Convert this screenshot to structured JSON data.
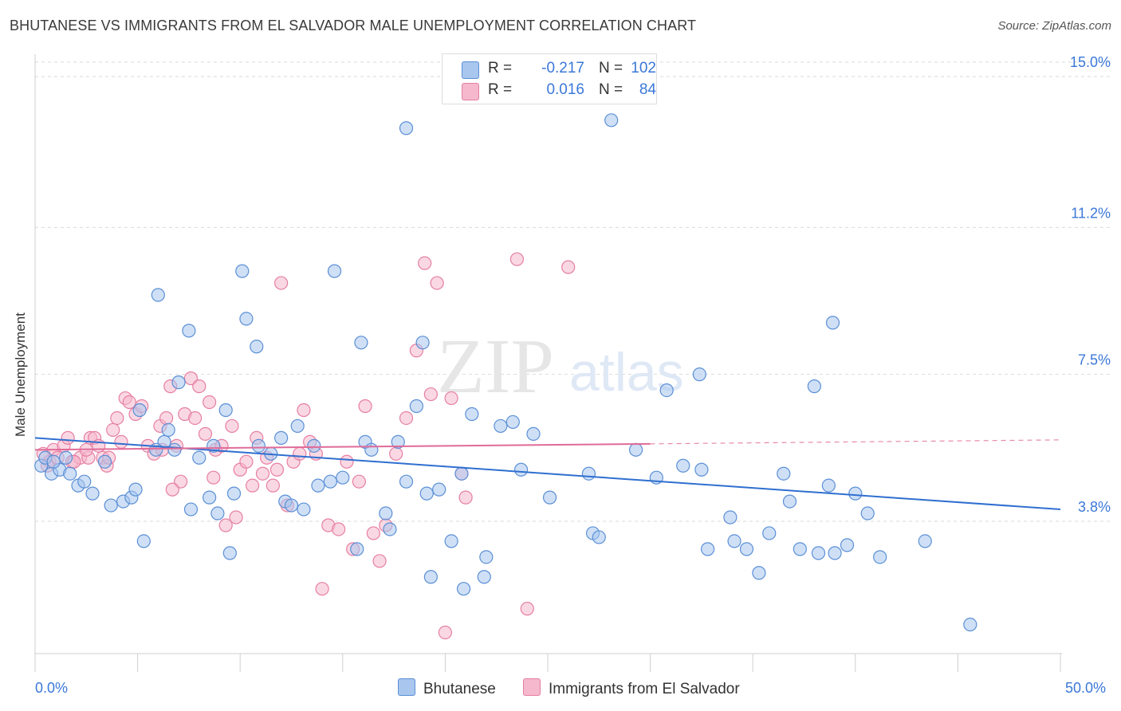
{
  "header": {
    "title": "BHUTANESE VS IMMIGRANTS FROM EL SALVADOR MALE UNEMPLOYMENT CORRELATION CHART",
    "source": "Source: ZipAtlas.com"
  },
  "watermark": {
    "zip": "ZIP",
    "atlas": "atlas"
  },
  "colors": {
    "blue_fill": "#a8c6ee",
    "blue_stroke": "#5b8fd6",
    "blue_line": "#2f6fd0",
    "pink_fill": "#f5b8cc",
    "pink_stroke": "#e67fa3",
    "pink_line": "#e06b98",
    "tick_text": "#3b78d8",
    "grid": "#d9d9d9"
  },
  "legend": {
    "rows": [
      {
        "r_label": "R =",
        "r_value": "-0.217",
        "n_label": "N =",
        "n_value": "102",
        "color": "#a8c6ee",
        "border": "#5b8fd6"
      },
      {
        "r_label": "R =",
        "r_value": "0.016",
        "n_label": "N =",
        "n_value": "84",
        "color": "#f5b8cc",
        "border": "#e67fa3"
      }
    ],
    "bottom": [
      {
        "label": "Bhutanese",
        "color": "#a8c6ee",
        "border": "#5b8fd6"
      },
      {
        "label": "Immigrants from El Salvador",
        "color": "#f5b8cc",
        "border": "#e67fa3"
      }
    ]
  },
  "chart_data": {
    "type": "scatter",
    "title": "BHUTANESE VS IMMIGRANTS FROM EL SALVADOR MALE UNEMPLOYMENT CORRELATION CHART",
    "xlabel": "",
    "ylabel": "Male Unemployment",
    "xlim": [
      0,
      50
    ],
    "ylim": [
      0,
      16
    ],
    "x_tick_labels": [
      "0.0%",
      "50.0%"
    ],
    "y_ticks": [
      3.8,
      7.5,
      11.2,
      15.0
    ],
    "y_tick_labels": [
      "3.8%",
      "7.5%",
      "11.2%",
      "15.0%"
    ],
    "grid": "horizontal dashed",
    "series": [
      {
        "name": "Bhutanese",
        "color": "#a8c6ee",
        "stroke": "#5b8fd6",
        "trend": {
          "x": [
            0,
            50
          ],
          "y": [
            5.9,
            4.1
          ]
        },
        "points": [
          [
            0.3,
            5.2
          ],
          [
            0.5,
            5.4
          ],
          [
            0.8,
            5.0
          ],
          [
            1.2,
            5.1
          ],
          [
            1.5,
            5.4
          ],
          [
            2.1,
            4.7
          ],
          [
            2.4,
            4.8
          ],
          [
            2.8,
            4.5
          ],
          [
            3.4,
            5.3
          ],
          [
            3.7,
            4.2
          ],
          [
            4.3,
            4.3
          ],
          [
            4.7,
            4.4
          ],
          [
            4.9,
            4.6
          ],
          [
            5.1,
            6.6
          ],
          [
            5.3,
            3.3
          ],
          [
            6.0,
            9.5
          ],
          [
            6.3,
            5.8
          ],
          [
            6.5,
            6.1
          ],
          [
            6.8,
            5.6
          ],
          [
            7.0,
            7.3
          ],
          [
            7.5,
            8.6
          ],
          [
            7.6,
            4.1
          ],
          [
            8.0,
            5.4
          ],
          [
            8.5,
            4.4
          ],
          [
            8.7,
            5.7
          ],
          [
            8.9,
            4.0
          ],
          [
            9.3,
            6.6
          ],
          [
            9.5,
            3.0
          ],
          [
            9.7,
            4.5
          ],
          [
            10.1,
            10.1
          ],
          [
            10.3,
            8.9
          ],
          [
            10.8,
            8.2
          ],
          [
            10.9,
            5.7
          ],
          [
            11.5,
            5.5
          ],
          [
            12.0,
            5.9
          ],
          [
            12.2,
            4.3
          ],
          [
            12.5,
            4.2
          ],
          [
            12.8,
            6.2
          ],
          [
            13.1,
            4.1
          ],
          [
            13.6,
            5.7
          ],
          [
            13.8,
            4.7
          ],
          [
            14.6,
            10.1
          ],
          [
            15.0,
            4.9
          ],
          [
            15.7,
            3.1
          ],
          [
            15.9,
            8.3
          ],
          [
            16.1,
            5.8
          ],
          [
            16.4,
            5.6
          ],
          [
            17.1,
            4.0
          ],
          [
            17.3,
            3.6
          ],
          [
            17.7,
            5.8
          ],
          [
            18.1,
            4.8
          ],
          [
            18.1,
            13.7
          ],
          [
            18.6,
            6.7
          ],
          [
            18.9,
            8.3
          ],
          [
            19.1,
            4.5
          ],
          [
            19.3,
            2.4
          ],
          [
            19.7,
            4.6
          ],
          [
            20.3,
            3.3
          ],
          [
            20.8,
            5.0
          ],
          [
            20.9,
            2.1
          ],
          [
            21.3,
            6.5
          ],
          [
            21.9,
            2.4
          ],
          [
            22.0,
            2.9
          ],
          [
            22.7,
            6.2
          ],
          [
            23.3,
            6.3
          ],
          [
            23.7,
            5.1
          ],
          [
            24.3,
            6.0
          ],
          [
            25.1,
            4.4
          ],
          [
            27.0,
            5.0
          ],
          [
            27.2,
            3.5
          ],
          [
            27.5,
            3.4
          ],
          [
            28.1,
            13.9
          ],
          [
            29.3,
            5.6
          ],
          [
            30.3,
            4.9
          ],
          [
            30.8,
            7.1
          ],
          [
            31.6,
            5.2
          ],
          [
            32.4,
            7.5
          ],
          [
            32.5,
            5.1
          ],
          [
            32.8,
            3.1
          ],
          [
            33.9,
            3.9
          ],
          [
            34.1,
            3.3
          ],
          [
            34.7,
            3.1
          ],
          [
            35.3,
            2.5
          ],
          [
            35.8,
            3.5
          ],
          [
            36.5,
            5.0
          ],
          [
            36.8,
            4.3
          ],
          [
            37.3,
            3.1
          ],
          [
            38.0,
            7.2
          ],
          [
            38.2,
            3.0
          ],
          [
            38.9,
            8.8
          ],
          [
            39.0,
            3.0
          ],
          [
            38.7,
            4.7
          ],
          [
            39.6,
            3.2
          ],
          [
            40.0,
            4.5
          ],
          [
            40.6,
            4.0
          ],
          [
            41.2,
            2.9
          ],
          [
            43.4,
            3.3
          ],
          [
            45.6,
            1.2
          ],
          [
            0.9,
            5.3
          ],
          [
            1.7,
            5.0
          ],
          [
            5.9,
            5.6
          ],
          [
            14.4,
            4.8
          ]
        ]
      },
      {
        "name": "Immigrants from El Salvador",
        "color": "#f5b8cc",
        "stroke": "#e67fa3",
        "trend": {
          "x": [
            0,
            30
          ],
          "y": [
            5.6,
            5.75
          ]
        },
        "trend_dashed": {
          "x": [
            30,
            50
          ],
          "y": [
            5.75,
            5.85
          ]
        },
        "points": [
          [
            0.4,
            5.5
          ],
          [
            0.7,
            5.3
          ],
          [
            0.9,
            5.6
          ],
          [
            1.1,
            5.4
          ],
          [
            1.4,
            5.7
          ],
          [
            1.6,
            5.9
          ],
          [
            1.8,
            5.3
          ],
          [
            2.2,
            5.4
          ],
          [
            2.6,
            5.4
          ],
          [
            2.7,
            5.9
          ],
          [
            2.9,
            5.9
          ],
          [
            3.1,
            5.7
          ],
          [
            3.3,
            5.4
          ],
          [
            3.5,
            5.2
          ],
          [
            3.8,
            6.1
          ],
          [
            4.0,
            6.4
          ],
          [
            4.2,
            5.8
          ],
          [
            4.4,
            6.9
          ],
          [
            4.6,
            6.8
          ],
          [
            4.9,
            6.5
          ],
          [
            5.2,
            6.7
          ],
          [
            5.5,
            5.7
          ],
          [
            5.8,
            5.5
          ],
          [
            6.1,
            6.2
          ],
          [
            6.4,
            6.4
          ],
          [
            6.6,
            7.2
          ],
          [
            6.9,
            5.7
          ],
          [
            7.1,
            4.8
          ],
          [
            7.3,
            6.5
          ],
          [
            7.6,
            7.4
          ],
          [
            7.8,
            6.4
          ],
          [
            8.0,
            7.2
          ],
          [
            8.3,
            6.0
          ],
          [
            8.5,
            6.8
          ],
          [
            8.8,
            5.6
          ],
          [
            9.1,
            5.7
          ],
          [
            9.3,
            3.7
          ],
          [
            9.6,
            6.2
          ],
          [
            9.8,
            3.9
          ],
          [
            10.0,
            5.1
          ],
          [
            10.3,
            5.3
          ],
          [
            10.6,
            4.7
          ],
          [
            10.8,
            5.9
          ],
          [
            11.1,
            5.0
          ],
          [
            11.3,
            5.4
          ],
          [
            11.6,
            4.7
          ],
          [
            11.8,
            5.1
          ],
          [
            12.0,
            9.8
          ],
          [
            12.3,
            4.2
          ],
          [
            12.6,
            5.3
          ],
          [
            12.9,
            5.5
          ],
          [
            13.1,
            6.6
          ],
          [
            13.4,
            5.8
          ],
          [
            13.7,
            5.5
          ],
          [
            14.0,
            2.1
          ],
          [
            14.3,
            3.7
          ],
          [
            14.8,
            3.6
          ],
          [
            15.2,
            5.3
          ],
          [
            15.5,
            3.1
          ],
          [
            15.8,
            4.8
          ],
          [
            16.1,
            6.7
          ],
          [
            16.5,
            3.5
          ],
          [
            16.8,
            2.8
          ],
          [
            17.1,
            3.7
          ],
          [
            17.6,
            5.5
          ],
          [
            18.1,
            6.4
          ],
          [
            18.6,
            8.1
          ],
          [
            19.0,
            10.3
          ],
          [
            19.3,
            7.0
          ],
          [
            19.6,
            9.8
          ],
          [
            20.0,
            1.0
          ],
          [
            20.3,
            6.9
          ],
          [
            20.8,
            5.0
          ],
          [
            21.0,
            4.4
          ],
          [
            23.5,
            10.4
          ],
          [
            24.0,
            1.6
          ],
          [
            26.0,
            10.2
          ],
          [
            8.7,
            4.9
          ],
          [
            6.7,
            4.6
          ],
          [
            6.2,
            5.6
          ],
          [
            3.6,
            5.4
          ],
          [
            2.5,
            5.6
          ],
          [
            1.9,
            5.3
          ],
          [
            0.6,
            5.2
          ]
        ]
      }
    ]
  }
}
